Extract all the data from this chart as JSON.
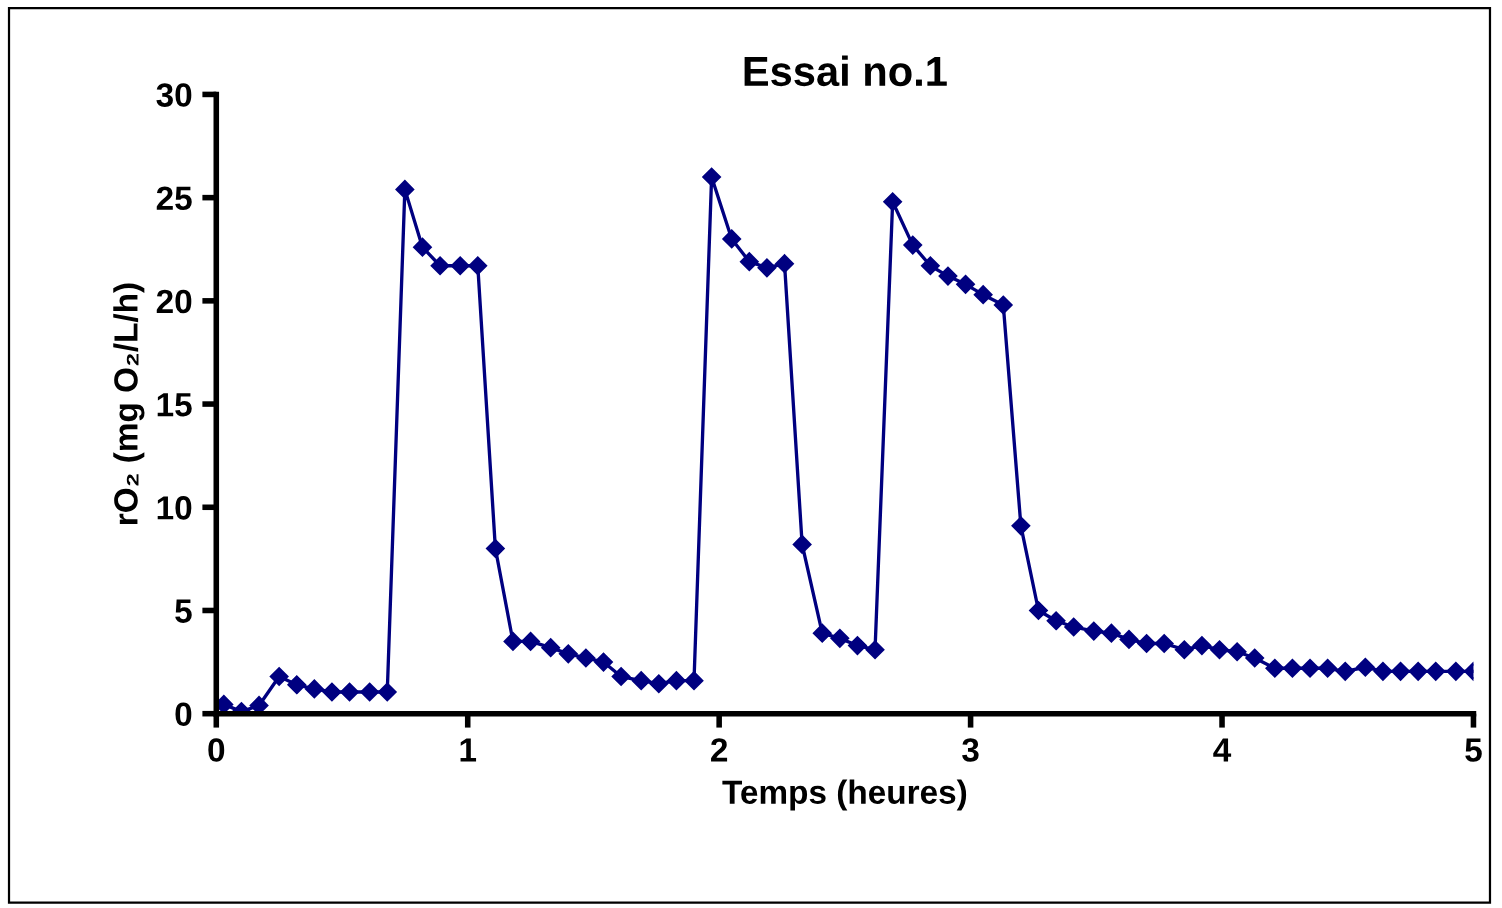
{
  "chart_data": {
    "type": "line",
    "title": "Essai no.1",
    "xlabel": "Temps (heures)",
    "ylabel": "rO₂ (mg O₂/L/h)",
    "xlim": [
      0,
      5
    ],
    "xticks": [
      0,
      1,
      2,
      3,
      4,
      5
    ],
    "ylim": [
      0,
      30
    ],
    "yticks": [
      0,
      5,
      10,
      15,
      20,
      25,
      30
    ],
    "grid": false,
    "legend": false,
    "marker": "diamond",
    "line_style": "solid",
    "series": [
      {
        "color": "#000080",
        "x": [
          0.03,
          0.1,
          0.17,
          0.25,
          0.32,
          0.39,
          0.46,
          0.53,
          0.61,
          0.68,
          0.75,
          0.82,
          0.89,
          0.97,
          1.04,
          1.11,
          1.18,
          1.25,
          1.33,
          1.4,
          1.47,
          1.54,
          1.61,
          1.69,
          1.76,
          1.83,
          1.9,
          1.97,
          2.05,
          2.12,
          2.19,
          2.26,
          2.33,
          2.41,
          2.48,
          2.55,
          2.62,
          2.69,
          2.77,
          2.84,
          2.91,
          2.98,
          3.05,
          3.13,
          3.2,
          3.27,
          3.34,
          3.41,
          3.49,
          3.56,
          3.63,
          3.7,
          3.77,
          3.85,
          3.92,
          3.99,
          4.06,
          4.13,
          4.21,
          4.28,
          4.35,
          4.42,
          4.49,
          4.57,
          4.64,
          4.71,
          4.78,
          4.85,
          4.93,
          5.0
        ],
        "values": [
          0.45,
          0.1,
          0.4,
          1.8,
          1.4,
          1.2,
          1.05,
          1.05,
          1.05,
          1.05,
          25.4,
          22.6,
          21.7,
          21.7,
          21.7,
          8.0,
          3.5,
          3.5,
          3.2,
          2.9,
          2.7,
          2.5,
          1.8,
          1.6,
          1.45,
          1.6,
          1.6,
          26.0,
          23.0,
          21.9,
          21.6,
          21.8,
          8.2,
          3.9,
          3.65,
          3.3,
          3.1,
          24.8,
          22.7,
          21.7,
          21.2,
          20.8,
          20.3,
          19.8,
          9.1,
          5.0,
          4.5,
          4.2,
          4.0,
          3.9,
          3.6,
          3.4,
          3.4,
          3.1,
          3.3,
          3.1,
          3.0,
          2.7,
          2.2,
          2.2,
          2.2,
          2.2,
          2.05,
          2.25,
          2.05,
          2.05,
          2.05,
          2.05,
          2.05,
          2.05
        ]
      }
    ]
  }
}
